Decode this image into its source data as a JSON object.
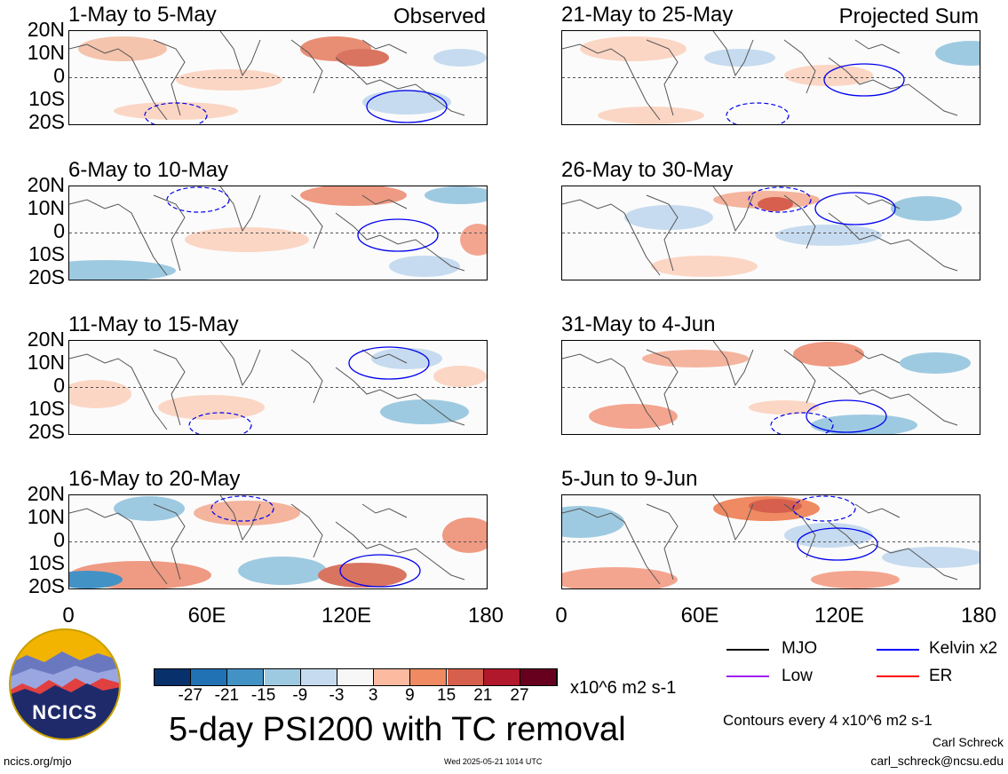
{
  "panels_left": [
    {
      "title": "1-May to 5-May",
      "label": "Observed"
    },
    {
      "title": "6-May to 10-May",
      "label": ""
    },
    {
      "title": "11-May to 15-May",
      "label": ""
    },
    {
      "title": "16-May to 20-May",
      "label": ""
    }
  ],
  "panels_right": [
    {
      "title": "21-May to 25-May",
      "label": "Projected Sum"
    },
    {
      "title": "26-May to 30-May",
      "label": ""
    },
    {
      "title": "31-May to 4-Jun",
      "label": ""
    },
    {
      "title": "5-Jun to 9-Jun",
      "label": ""
    }
  ],
  "lat_labels": [
    "20N",
    "10N",
    "0",
    "10S",
    "20S"
  ],
  "lon_labels": [
    "0",
    "60E",
    "120E",
    "180"
  ],
  "colorbar": {
    "ticks": [
      "-27",
      "-21",
      "-15",
      "-9",
      "-3",
      "3",
      "9",
      "15",
      "21",
      "27"
    ],
    "colors": [
      "#08306b",
      "#2171b5",
      "#4292c6",
      "#9ecae1",
      "#c6dbef",
      "#f7f7f7",
      "#fcbba1",
      "#ef8a62",
      "#d6604d",
      "#b2182b",
      "#67001f"
    ],
    "units": "x10^6 m2 s-1"
  },
  "legend": {
    "items": [
      {
        "label": "MJO",
        "color": "#000000"
      },
      {
        "label": "Kelvin x2",
        "color": "#0000ff"
      },
      {
        "label": "Low",
        "color": "#a020f0"
      },
      {
        "label": "ER",
        "color": "#ff0000"
      }
    ],
    "contour_note": "Contours every 4 x10^6 m2 s-1"
  },
  "main_title": "5-day PSI200 with TC removal",
  "footer": {
    "left": "ncics.org/mjo",
    "center": "Wed 2025-05-21 1014 UTC",
    "author": "Carl Schreck",
    "email": "carl_schreck@ncsu.edu"
  },
  "logo_text": "NCICS"
}
